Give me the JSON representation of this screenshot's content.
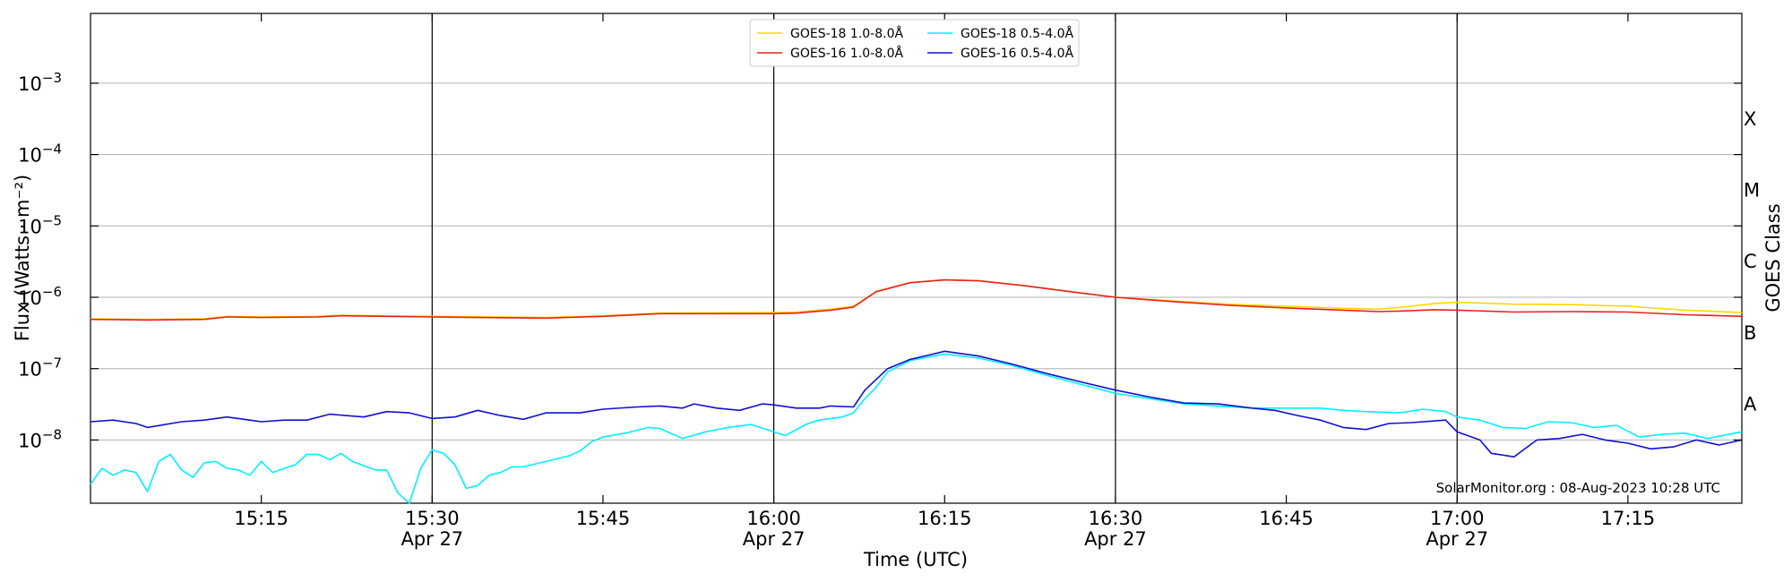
{
  "chart_data": {
    "type": "line",
    "xlabel": "Time (UTC)",
    "ylabel": "Flux (Watts · m⁻²)",
    "y2label": "GOES Class",
    "credit": "SolarMonitor.org : 08-Aug-2023 10:28 UTC",
    "x_range": [
      "15:00",
      "17:25"
    ],
    "ylim": [
      1.3e-09,
      0.0095
    ],
    "y_scale": "log",
    "grid": "horizontal at decades",
    "legend_placement": "top-center",
    "y_ticks": [
      {
        "value": 1e-08,
        "base": "10",
        "exp": "−8"
      },
      {
        "value": 1e-07,
        "base": "10",
        "exp": "−7"
      },
      {
        "value": 1e-06,
        "base": "10",
        "exp": "−6"
      },
      {
        "value": 1e-05,
        "base": "10",
        "exp": "−5"
      },
      {
        "value": 0.0001,
        "base": "10",
        "exp": "−4"
      },
      {
        "value": 0.001,
        "base": "10",
        "exp": "−3"
      }
    ],
    "x_ticks": [
      {
        "time": "15:15",
        "label": "15:15",
        "date": ""
      },
      {
        "time": "15:30",
        "label": "15:30",
        "date": "Apr 27"
      },
      {
        "time": "15:45",
        "label": "15:45",
        "date": ""
      },
      {
        "time": "16:00",
        "label": "16:00",
        "date": "Apr 27"
      },
      {
        "time": "16:15",
        "label": "16:15",
        "date": ""
      },
      {
        "time": "16:30",
        "label": "16:30",
        "date": "Apr 27"
      },
      {
        "time": "16:45",
        "label": "16:45",
        "date": ""
      },
      {
        "time": "17:00",
        "label": "17:00",
        "date": "Apr 27"
      },
      {
        "time": "17:15",
        "label": "17:15",
        "date": ""
      }
    ],
    "vertical_lines": [
      "15:30",
      "16:00",
      "16:30",
      "17:00"
    ],
    "goes_classes": [
      {
        "label": "A",
        "value": 3.16e-08
      },
      {
        "label": "B",
        "value": 3.16e-07
      },
      {
        "label": "C",
        "value": 3.16e-06
      },
      {
        "label": "M",
        "value": 3.16e-05
      },
      {
        "label": "X",
        "value": 0.000316
      }
    ],
    "series": [
      {
        "name": "GOES-18 1.0-8.0Å",
        "color": "#ffd700",
        "points": [
          [
            "15:00",
            5e-07
          ],
          [
            "15:05",
            4.9e-07
          ],
          [
            "15:10",
            5e-07
          ],
          [
            "15:12",
            5.4e-07
          ],
          [
            "15:15",
            5.3e-07
          ],
          [
            "15:20",
            5.4e-07
          ],
          [
            "15:22",
            5.6e-07
          ],
          [
            "15:30",
            5.4e-07
          ],
          [
            "15:40",
            5.2e-07
          ],
          [
            "15:45",
            5.5e-07
          ],
          [
            "15:50",
            6e-07
          ],
          [
            "16:00",
            6.1e-07
          ],
          [
            "16:02",
            6.2e-07
          ],
          [
            "16:05",
            6.8e-07
          ],
          [
            "16:07",
            7.5e-07
          ],
          [
            "16:09",
            1.2e-06
          ],
          [
            "16:12",
            1.6e-06
          ],
          [
            "16:15",
            1.75e-06
          ],
          [
            "16:18",
            1.7e-06
          ],
          [
            "16:22",
            1.45e-06
          ],
          [
            "16:26",
            1.2e-06
          ],
          [
            "16:30",
            1e-06
          ],
          [
            "16:35",
            8.9e-07
          ],
          [
            "16:40",
            8e-07
          ],
          [
            "16:45",
            7.5e-07
          ],
          [
            "16:50",
            7e-07
          ],
          [
            "16:53",
            6.8e-07
          ],
          [
            "16:55",
            7.2e-07
          ],
          [
            "16:58",
            8.2e-07
          ],
          [
            "17:00",
            8.5e-07
          ],
          [
            "17:05",
            8e-07
          ],
          [
            "17:10",
            7.9e-07
          ],
          [
            "17:15",
            7.5e-07
          ],
          [
            "17:20",
            6.6e-07
          ],
          [
            "17:25",
            6.1e-07
          ]
        ]
      },
      {
        "name": "GOES-16 1.0-8.0Å",
        "color": "#e8211c",
        "points": [
          [
            "15:00",
            4.9e-07
          ],
          [
            "15:05",
            4.8e-07
          ],
          [
            "15:10",
            4.9e-07
          ],
          [
            "15:12",
            5.3e-07
          ],
          [
            "15:15",
            5.2e-07
          ],
          [
            "15:20",
            5.3e-07
          ],
          [
            "15:22",
            5.5e-07
          ],
          [
            "15:30",
            5.3e-07
          ],
          [
            "15:40",
            5.1e-07
          ],
          [
            "15:45",
            5.4e-07
          ],
          [
            "15:50",
            5.9e-07
          ],
          [
            "16:00",
            5.9e-07
          ],
          [
            "16:02",
            6e-07
          ],
          [
            "16:05",
            6.6e-07
          ],
          [
            "16:07",
            7.3e-07
          ],
          [
            "16:09",
            1.2e-06
          ],
          [
            "16:12",
            1.6e-06
          ],
          [
            "16:15",
            1.75e-06
          ],
          [
            "16:18",
            1.7e-06
          ],
          [
            "16:22",
            1.45e-06
          ],
          [
            "16:26",
            1.2e-06
          ],
          [
            "16:30",
            1e-06
          ],
          [
            "16:35",
            8.7e-07
          ],
          [
            "16:40",
            7.7e-07
          ],
          [
            "16:45",
            7.1e-07
          ],
          [
            "16:50",
            6.6e-07
          ],
          [
            "16:53",
            6.3e-07
          ],
          [
            "16:55",
            6.4e-07
          ],
          [
            "16:58",
            6.7e-07
          ],
          [
            "17:00",
            6.6e-07
          ],
          [
            "17:05",
            6.2e-07
          ],
          [
            "17:10",
            6.3e-07
          ],
          [
            "17:15",
            6.2e-07
          ],
          [
            "17:20",
            5.7e-07
          ],
          [
            "17:25",
            5.4e-07
          ]
        ]
      },
      {
        "name": "GOES-18 0.5-4.0Å",
        "color": "#00f0ff",
        "points": [
          [
            "15:00",
            2.4e-09
          ],
          [
            "15:01",
            4e-09
          ],
          [
            "15:02",
            3.2e-09
          ],
          [
            "15:03",
            3.8e-09
          ],
          [
            "15:04",
            3.5e-09
          ],
          [
            "15:05",
            1.9e-09
          ],
          [
            "15:06",
            5e-09
          ],
          [
            "15:07",
            6.3e-09
          ],
          [
            "15:08",
            3.8e-09
          ],
          [
            "15:09",
            3e-09
          ],
          [
            "15:10",
            4.8e-09
          ],
          [
            "15:11",
            5e-09
          ],
          [
            "15:12",
            4e-09
          ],
          [
            "15:13",
            3.8e-09
          ],
          [
            "15:14",
            3.2e-09
          ],
          [
            "15:15",
            5e-09
          ],
          [
            "15:16",
            3.5e-09
          ],
          [
            "15:17",
            4e-09
          ],
          [
            "15:18",
            4.5e-09
          ],
          [
            "15:19",
            6.3e-09
          ],
          [
            "15:20",
            6.3e-09
          ],
          [
            "15:21",
            5.3e-09
          ],
          [
            "15:22",
            6.5e-09
          ],
          [
            "15:23",
            5e-09
          ],
          [
            "15:25",
            3.8e-09
          ],
          [
            "15:26",
            3.8e-09
          ],
          [
            "15:27",
            1.8e-09
          ],
          [
            "15:28",
            1e-09
          ],
          [
            "15:29",
            4e-09
          ],
          [
            "15:30",
            7.3e-09
          ],
          [
            "15:31",
            6.5e-09
          ],
          [
            "15:32",
            4.5e-09
          ],
          [
            "15:33",
            2.1e-09
          ],
          [
            "15:34",
            2.3e-09
          ],
          [
            "15:35",
            3.2e-09
          ],
          [
            "15:36",
            3.5e-09
          ],
          [
            "15:37",
            4.2e-09
          ],
          [
            "15:38",
            4.2e-09
          ],
          [
            "15:40",
            5e-09
          ],
          [
            "15:42",
            6e-09
          ],
          [
            "15:43",
            7e-09
          ],
          [
            "15:44",
            9.5e-09
          ],
          [
            "15:45",
            1.1e-08
          ],
          [
            "15:47",
            1.25e-08
          ],
          [
            "15:49",
            1.5e-08
          ],
          [
            "15:50",
            1.45e-08
          ],
          [
            "15:52",
            1.05e-08
          ],
          [
            "15:54",
            1.3e-08
          ],
          [
            "15:56",
            1.5e-08
          ],
          [
            "15:58",
            1.65e-08
          ],
          [
            "16:00",
            1.3e-08
          ],
          [
            "16:01",
            1.15e-08
          ],
          [
            "16:02",
            1.4e-08
          ],
          [
            "16:03",
            1.7e-08
          ],
          [
            "16:04",
            1.9e-08
          ],
          [
            "16:05",
            2e-08
          ],
          [
            "16:06",
            2.1e-08
          ],
          [
            "16:07",
            2.4e-08
          ],
          [
            "16:08",
            3.8e-08
          ],
          [
            "16:09",
            5.5e-08
          ],
          [
            "16:10",
            9e-08
          ],
          [
            "16:12",
            1.3e-07
          ],
          [
            "16:14",
            1.5e-07
          ],
          [
            "16:15",
            1.6e-07
          ],
          [
            "16:18",
            1.4e-07
          ],
          [
            "16:21",
            1.1e-07
          ],
          [
            "16:24",
            8e-08
          ],
          [
            "16:27",
            6e-08
          ],
          [
            "16:30",
            4.5e-08
          ],
          [
            "16:33",
            3.8e-08
          ],
          [
            "16:36",
            3.2e-08
          ],
          [
            "16:39",
            3e-08
          ],
          [
            "16:42",
            2.8e-08
          ],
          [
            "16:45",
            2.8e-08
          ],
          [
            "16:48",
            2.8e-08
          ],
          [
            "16:50",
            2.6e-08
          ],
          [
            "16:52",
            2.5e-08
          ],
          [
            "16:55",
            2.4e-08
          ],
          [
            "16:57",
            2.7e-08
          ],
          [
            "16:59",
            2.5e-08
          ],
          [
            "17:00",
            2.1e-08
          ],
          [
            "17:02",
            1.9e-08
          ],
          [
            "17:04",
            1.5e-08
          ],
          [
            "17:06",
            1.45e-08
          ],
          [
            "17:08",
            1.8e-08
          ],
          [
            "17:10",
            1.75e-08
          ],
          [
            "17:12",
            1.5e-08
          ],
          [
            "17:14",
            1.6e-08
          ],
          [
            "17:16",
            1.1e-08
          ],
          [
            "17:18",
            1.2e-08
          ],
          [
            "17:20",
            1.25e-08
          ],
          [
            "17:22",
            1.05e-08
          ],
          [
            "17:25",
            1.3e-08
          ]
        ]
      },
      {
        "name": "GOES-16 0.5-4.0Å",
        "color": "#1010d0",
        "points": [
          [
            "15:00",
            1.8e-08
          ],
          [
            "15:02",
            1.9e-08
          ],
          [
            "15:04",
            1.7e-08
          ],
          [
            "15:05",
            1.5e-08
          ],
          [
            "15:08",
            1.8e-08
          ],
          [
            "15:10",
            1.9e-08
          ],
          [
            "15:12",
            2.1e-08
          ],
          [
            "15:14",
            1.9e-08
          ],
          [
            "15:15",
            1.8e-08
          ],
          [
            "15:17",
            1.9e-08
          ],
          [
            "15:19",
            1.9e-08
          ],
          [
            "15:21",
            2.3e-08
          ],
          [
            "15:24",
            2.1e-08
          ],
          [
            "15:26",
            2.5e-08
          ],
          [
            "15:28",
            2.4e-08
          ],
          [
            "15:30",
            2e-08
          ],
          [
            "15:32",
            2.1e-08
          ],
          [
            "15:34",
            2.6e-08
          ],
          [
            "15:36",
            2.2e-08
          ],
          [
            "15:38",
            1.95e-08
          ],
          [
            "15:40",
            2.4e-08
          ],
          [
            "15:43",
            2.4e-08
          ],
          [
            "15:45",
            2.7e-08
          ],
          [
            "15:48",
            2.9e-08
          ],
          [
            "15:50",
            3e-08
          ],
          [
            "15:52",
            2.8e-08
          ],
          [
            "15:53",
            3.2e-08
          ],
          [
            "15:55",
            2.8e-08
          ],
          [
            "15:57",
            2.6e-08
          ],
          [
            "15:59",
            3.2e-08
          ],
          [
            "16:00",
            3.1e-08
          ],
          [
            "16:02",
            2.8e-08
          ],
          [
            "16:04",
            2.8e-08
          ],
          [
            "16:05",
            3e-08
          ],
          [
            "16:07",
            2.9e-08
          ],
          [
            "16:08",
            5e-08
          ],
          [
            "16:10",
            1e-07
          ],
          [
            "16:12",
            1.35e-07
          ],
          [
            "16:14",
            1.6e-07
          ],
          [
            "16:15",
            1.75e-07
          ],
          [
            "16:18",
            1.5e-07
          ],
          [
            "16:21",
            1.15e-07
          ],
          [
            "16:24",
            8.5e-08
          ],
          [
            "16:27",
            6.5e-08
          ],
          [
            "16:30",
            5e-08
          ],
          [
            "16:33",
            4e-08
          ],
          [
            "16:36",
            3.3e-08
          ],
          [
            "16:39",
            3.2e-08
          ],
          [
            "16:42",
            2.8e-08
          ],
          [
            "16:44",
            2.6e-08
          ],
          [
            "16:46",
            2.2e-08
          ],
          [
            "16:48",
            1.9e-08
          ],
          [
            "16:50",
            1.5e-08
          ],
          [
            "16:52",
            1.4e-08
          ],
          [
            "16:54",
            1.7e-08
          ],
          [
            "16:56",
            1.75e-08
          ],
          [
            "16:59",
            1.9e-08
          ],
          [
            "17:00",
            1.3e-08
          ],
          [
            "17:02",
            1e-08
          ],
          [
            "17:03",
            6.5e-09
          ],
          [
            "17:05",
            5.8e-09
          ],
          [
            "17:07",
            1e-08
          ],
          [
            "17:09",
            1.05e-08
          ],
          [
            "17:11",
            1.2e-08
          ],
          [
            "17:13",
            1e-08
          ],
          [
            "17:15",
            9e-09
          ],
          [
            "17:17",
            7.5e-09
          ],
          [
            "17:19",
            8e-09
          ],
          [
            "17:21",
            1e-08
          ],
          [
            "17:23",
            8.5e-09
          ],
          [
            "17:25",
            1e-08
          ]
        ]
      }
    ]
  }
}
